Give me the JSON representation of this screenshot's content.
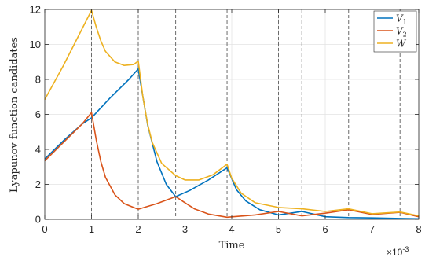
{
  "chart_data": {
    "type": "line",
    "xlabel": "Time",
    "ylabel": "Lyapunov function candidates",
    "xlim": [
      0,
      0.008
    ],
    "ylim": [
      0,
      12
    ],
    "x_ticks": [
      0,
      1,
      2,
      3,
      4,
      5,
      6,
      7,
      8
    ],
    "y_ticks": [
      0,
      2,
      4,
      6,
      8,
      10,
      12
    ],
    "x_multiplier": "×10",
    "x_multiplier_exp": "-3",
    "grid": true,
    "legend_position": "top-right",
    "event_times": [
      0.001,
      0.002,
      0.0028,
      0.0039,
      0.005,
      0.0055,
      0.0065,
      0.007,
      0.0076
    ],
    "series": [
      {
        "name": "V",
        "subscript": "1",
        "color": "#0072BD",
        "points": [
          [
            0,
            3.45
          ],
          [
            0.0004,
            4.5
          ],
          [
            0.0008,
            5.45
          ],
          [
            0.001,
            5.8
          ],
          [
            0.0014,
            6.95
          ],
          [
            0.0018,
            8.0
          ],
          [
            0.002,
            8.6
          ],
          [
            0.0022,
            5.4
          ],
          [
            0.0024,
            3.3
          ],
          [
            0.0026,
            2.0
          ],
          [
            0.0028,
            1.3
          ],
          [
            0.0031,
            1.65
          ],
          [
            0.0035,
            2.25
          ],
          [
            0.0039,
            2.95
          ],
          [
            0.0041,
            1.7
          ],
          [
            0.0043,
            1.05
          ],
          [
            0.0046,
            0.55
          ],
          [
            0.005,
            0.25
          ],
          [
            0.0055,
            0.45
          ],
          [
            0.006,
            0.15
          ],
          [
            0.0065,
            0.1
          ],
          [
            0.007,
            0.08
          ],
          [
            0.0076,
            0.05
          ],
          [
            0.008,
            0.03
          ]
        ]
      },
      {
        "name": "V",
        "subscript": "2",
        "color": "#D95319",
        "points": [
          [
            0,
            3.35
          ],
          [
            0.0004,
            4.4
          ],
          [
            0.0008,
            5.45
          ],
          [
            0.001,
            6.1
          ],
          [
            0.0011,
            4.55
          ],
          [
            0.0012,
            3.3
          ],
          [
            0.0013,
            2.4
          ],
          [
            0.0015,
            1.4
          ],
          [
            0.0017,
            0.9
          ],
          [
            0.0019,
            0.68
          ],
          [
            0.002,
            0.58
          ],
          [
            0.0024,
            0.9
          ],
          [
            0.0028,
            1.3
          ],
          [
            0.003,
            0.95
          ],
          [
            0.0032,
            0.6
          ],
          [
            0.0035,
            0.3
          ],
          [
            0.0039,
            0.12
          ],
          [
            0.0045,
            0.25
          ],
          [
            0.005,
            0.45
          ],
          [
            0.0055,
            0.2
          ],
          [
            0.006,
            0.35
          ],
          [
            0.0065,
            0.55
          ],
          [
            0.007,
            0.28
          ],
          [
            0.0076,
            0.4
          ],
          [
            0.008,
            0.15
          ]
        ]
      },
      {
        "name": "W",
        "subscript": "",
        "color": "#EDB120",
        "points": [
          [
            0,
            6.85
          ],
          [
            0.0004,
            8.8
          ],
          [
            0.0008,
            10.9
          ],
          [
            0.001,
            11.95
          ],
          [
            0.0011,
            11.0
          ],
          [
            0.0012,
            10.2
          ],
          [
            0.0013,
            9.6
          ],
          [
            0.0015,
            9.0
          ],
          [
            0.0017,
            8.8
          ],
          [
            0.0019,
            8.85
          ],
          [
            0.002,
            9.05
          ],
          [
            0.0021,
            7.0
          ],
          [
            0.0022,
            5.45
          ],
          [
            0.0023,
            4.4
          ],
          [
            0.0025,
            3.2
          ],
          [
            0.0028,
            2.5
          ],
          [
            0.003,
            2.25
          ],
          [
            0.0033,
            2.25
          ],
          [
            0.0036,
            2.55
          ],
          [
            0.0039,
            3.15
          ],
          [
            0.004,
            2.35
          ],
          [
            0.0042,
            1.5
          ],
          [
            0.0045,
            0.95
          ],
          [
            0.005,
            0.68
          ],
          [
            0.0055,
            0.6
          ],
          [
            0.006,
            0.45
          ],
          [
            0.0065,
            0.6
          ],
          [
            0.007,
            0.32
          ],
          [
            0.0076,
            0.42
          ],
          [
            0.008,
            0.2
          ]
        ]
      }
    ]
  }
}
